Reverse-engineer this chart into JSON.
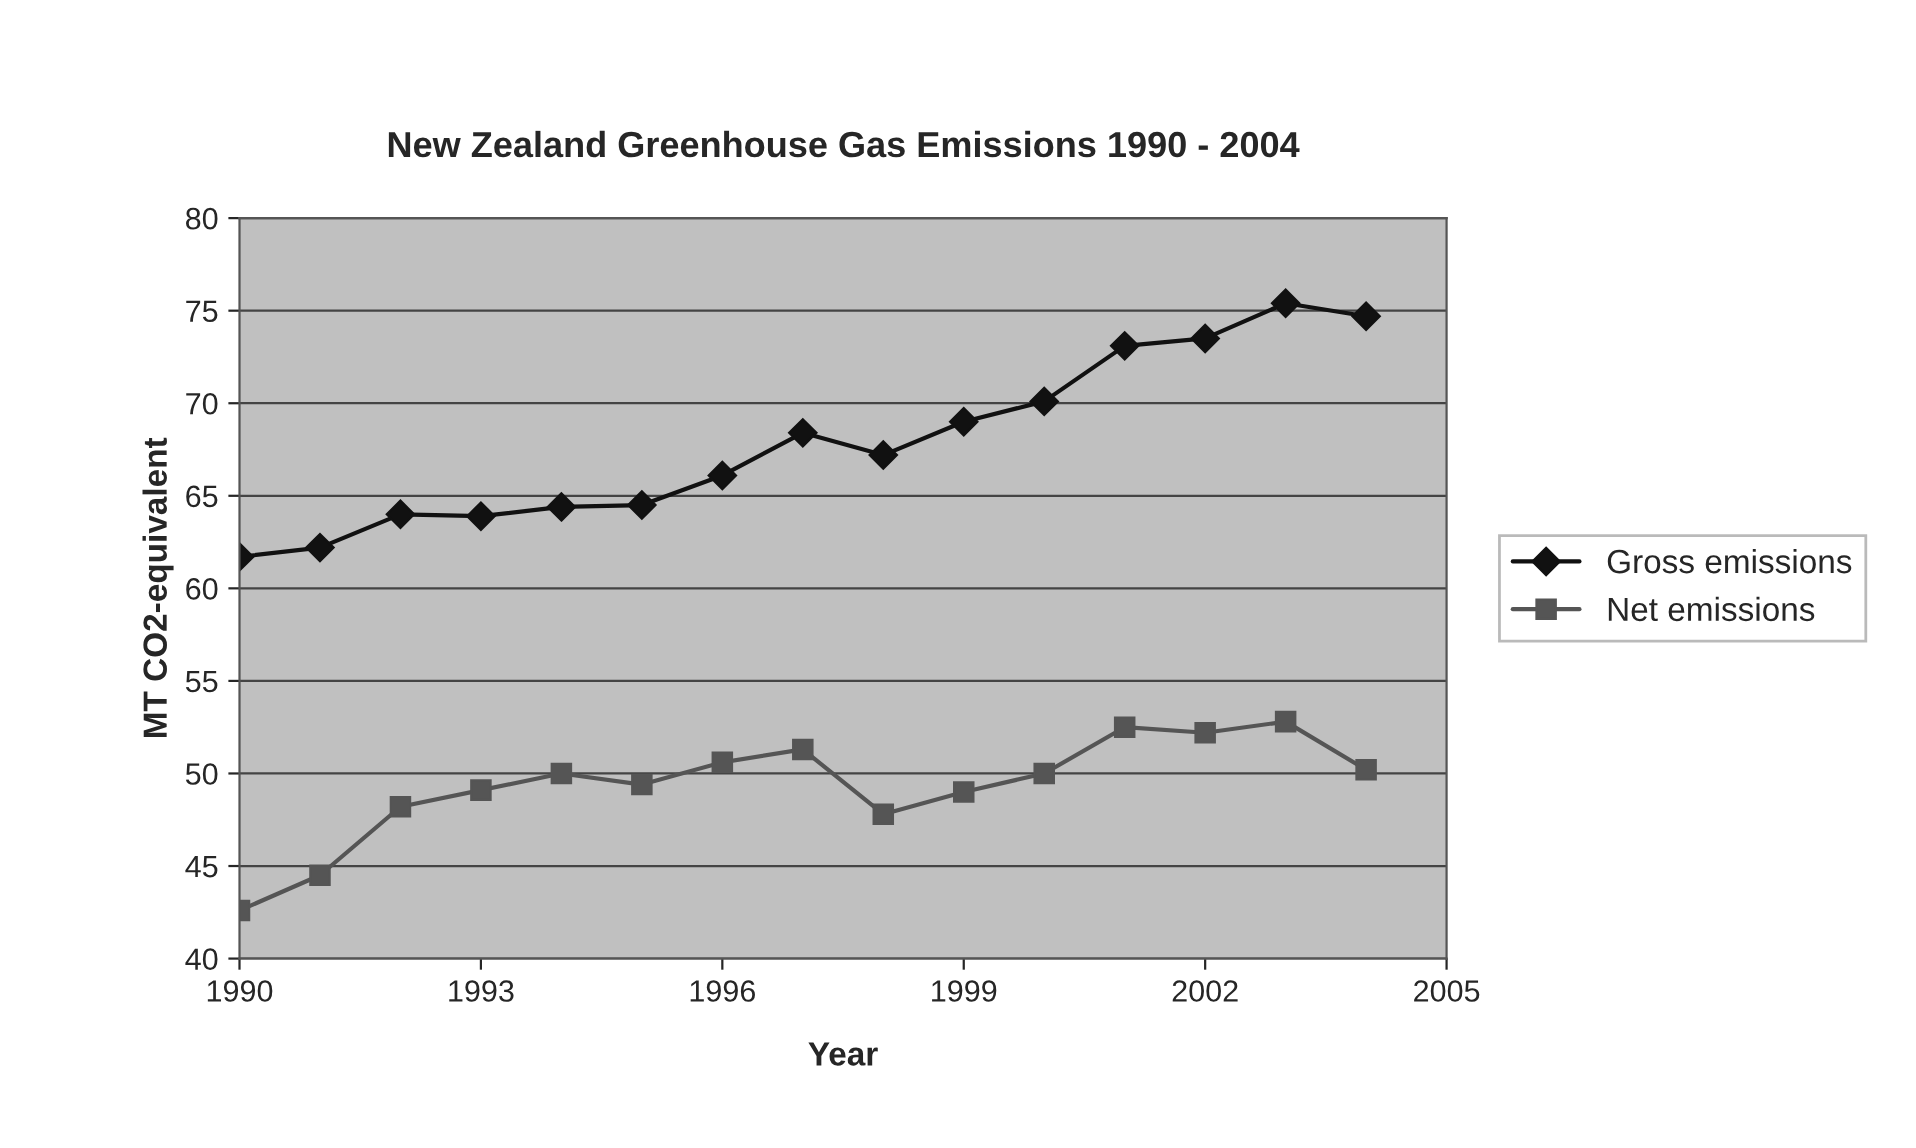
{
  "chart_data": {
    "type": "line",
    "title": "New Zealand Greenhouse Gas Emissions 1990 - 2004",
    "xlabel": "Year",
    "ylabel": "MT CO2-equivalent",
    "x": [
      1990,
      1991,
      1992,
      1993,
      1994,
      1995,
      1996,
      1997,
      1998,
      1999,
      2000,
      2001,
      2002,
      2003,
      2004
    ],
    "series": [
      {
        "name": "Gross emissions",
        "color": "#111111",
        "marker": "diamond",
        "values": [
          61.7,
          62.2,
          64.0,
          63.9,
          64.4,
          64.5,
          66.1,
          68.4,
          67.2,
          69.0,
          70.1,
          73.1,
          73.5,
          75.4,
          74.7
        ]
      },
      {
        "name": "Net emissions",
        "color": "#555555",
        "marker": "square",
        "values": [
          42.6,
          44.5,
          48.2,
          49.1,
          50.0,
          49.4,
          50.6,
          51.3,
          47.8,
          49.0,
          50.0,
          52.5,
          52.2,
          52.8,
          50.2
        ]
      }
    ],
    "xlim": [
      1990,
      2005
    ],
    "xticks": [
      1990,
      1993,
      1996,
      1999,
      2002,
      2005
    ],
    "ylim": [
      40,
      80
    ],
    "yticks": [
      40,
      45,
      50,
      55,
      60,
      65,
      70,
      75,
      80
    ],
    "grid": "y",
    "legend": "right",
    "line_style": "solid"
  }
}
